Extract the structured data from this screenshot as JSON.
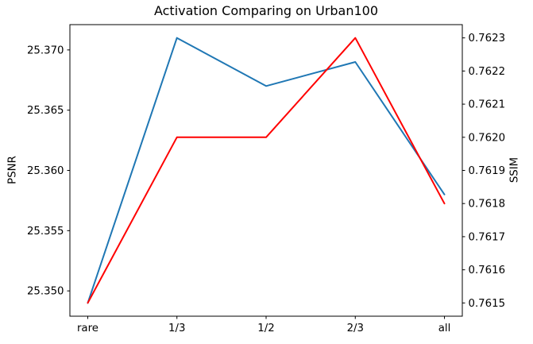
{
  "chart_data": {
    "type": "line",
    "title": "Activation Comparing on Urban100",
    "categories": [
      "rare",
      "1/3",
      "1/2",
      "2/3",
      "all"
    ],
    "series": [
      {
        "name": "PSNR",
        "axis": "left",
        "color": "#1f77b4",
        "values": [
          25.349,
          25.371,
          25.367,
          25.369,
          25.358
        ]
      },
      {
        "name": "SSIM",
        "axis": "right",
        "color": "#ff0000",
        "values": [
          0.7615,
          0.762,
          0.762,
          0.7623,
          0.7618
        ]
      }
    ],
    "left_axis": {
      "label": "PSNR",
      "ylim": [
        25.3479,
        25.3721
      ],
      "ticks": [
        {
          "v": 25.35,
          "label": "25.350"
        },
        {
          "v": 25.355,
          "label": "25.355"
        },
        {
          "v": 25.36,
          "label": "25.360"
        },
        {
          "v": 25.365,
          "label": "25.365"
        },
        {
          "v": 25.37,
          "label": "25.370"
        }
      ]
    },
    "right_axis": {
      "label": "SSIM",
      "ylim": [
        0.76146,
        0.76234
      ],
      "ticks": [
        {
          "v": 0.7615,
          "label": "0.7615"
        },
        {
          "v": 0.7616,
          "label": "0.7616"
        },
        {
          "v": 0.7617,
          "label": "0.7617"
        },
        {
          "v": 0.7618,
          "label": "0.7618"
        },
        {
          "v": 0.7619,
          "label": "0.7619"
        },
        {
          "v": 0.762,
          "label": "0.7620"
        },
        {
          "v": 0.7621,
          "label": "0.7621"
        },
        {
          "v": 0.7622,
          "label": "0.7622"
        },
        {
          "v": 0.7623,
          "label": "0.7623"
        }
      ]
    },
    "x_axis": {
      "xlim": [
        -0.2,
        4.2
      ]
    },
    "grid": false,
    "legend": null,
    "frame_color": "#000000"
  }
}
